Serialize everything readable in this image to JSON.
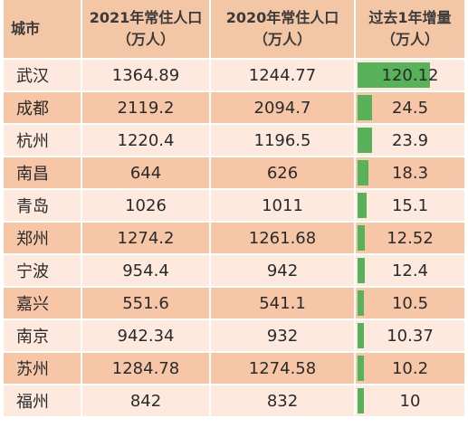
{
  "chart_data": {
    "type": "table",
    "headers": [
      {
        "lines": [
          "城市"
        ]
      },
      {
        "lines": [
          "2021年常住人口",
          "（万人）"
        ]
      },
      {
        "lines": [
          "2020年常住人口",
          "（万人）"
        ]
      },
      {
        "lines": [
          "过去1年增量",
          "（万人）"
        ]
      }
    ],
    "rows": [
      {
        "city": "武汉",
        "pop2021": "1364.89",
        "pop2020": "1244.77",
        "increase": "120.12",
        "increase_value": 120.12
      },
      {
        "city": "成都",
        "pop2021": "2119.2",
        "pop2020": "2094.7",
        "increase": "24.5",
        "increase_value": 24.5
      },
      {
        "city": "杭州",
        "pop2021": "1220.4",
        "pop2020": "1196.5",
        "increase": "23.9",
        "increase_value": 23.9
      },
      {
        "city": "南昌",
        "pop2021": "644",
        "pop2020": "626",
        "increase": "18.3",
        "increase_value": 18.3
      },
      {
        "city": "青岛",
        "pop2021": "1026",
        "pop2020": "1011",
        "increase": "15.1",
        "increase_value": 15.1
      },
      {
        "city": "郑州",
        "pop2021": "1274.2",
        "pop2020": "1261.68",
        "increase": "12.52",
        "increase_value": 12.52
      },
      {
        "city": "宁波",
        "pop2021": "954.4",
        "pop2020": "942",
        "increase": "12.4",
        "increase_value": 12.4
      },
      {
        "city": "嘉兴",
        "pop2021": "551.6",
        "pop2020": "541.1",
        "increase": "10.5",
        "increase_value": 10.5
      },
      {
        "city": "南京",
        "pop2021": "942.34",
        "pop2020": "932",
        "increase": "10.37",
        "increase_value": 10.37
      },
      {
        "city": "苏州",
        "pop2021": "1284.78",
        "pop2020": "1274.58",
        "increase": "10.2",
        "increase_value": 10.2
      },
      {
        "city": "福州",
        "pop2021": "842",
        "pop2020": "832",
        "increase": "10",
        "increase_value": 10
      }
    ],
    "bar_max": 120.12,
    "colors": {
      "header_bg": "#f3c6a6",
      "row_light": "#fde9dd",
      "row_dark": "#f6c6a7",
      "bar": "#57b25a"
    }
  }
}
